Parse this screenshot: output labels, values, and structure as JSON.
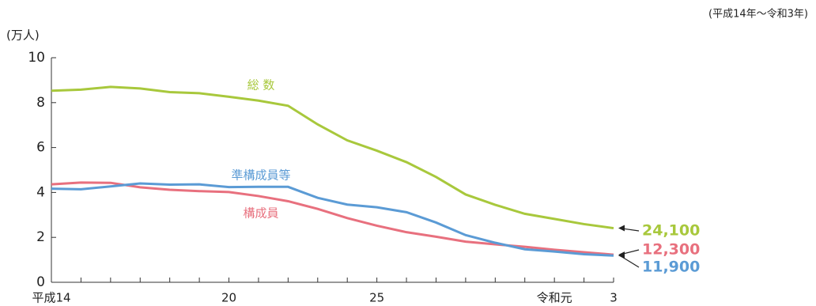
{
  "chart_data": {
    "type": "line",
    "subtitle": "(平成14年～令和3年)",
    "y_label": "(万人)",
    "categories": [
      "平成14",
      null,
      null,
      null,
      null,
      null,
      "20",
      null,
      null,
      null,
      null,
      "25",
      null,
      null,
      null,
      null,
      null,
      "令和元",
      null,
      "3"
    ],
    "series": [
      {
        "name": "総 数",
        "color": "#a8c83c",
        "values": [
          8.53,
          8.58,
          8.7,
          8.63,
          8.47,
          8.42,
          8.26,
          8.09,
          7.86,
          7.03,
          6.32,
          5.86,
          5.35,
          4.69,
          3.91,
          3.45,
          3.05,
          2.82,
          2.59,
          2.41
        ],
        "value_labels": [
          null,
          null,
          null,
          null,
          null,
          null,
          null,
          null,
          null,
          null,
          null,
          null,
          null,
          null,
          null,
          null,
          null,
          null,
          null,
          "24,100"
        ]
      },
      {
        "name": "構成員",
        "color": "#e8707e",
        "values": [
          4.36,
          4.44,
          4.43,
          4.23,
          4.12,
          4.06,
          4.02,
          3.84,
          3.61,
          3.27,
          2.86,
          2.52,
          2.23,
          2.03,
          1.81,
          1.69,
          1.58,
          1.45,
          1.34,
          1.23
        ],
        "value_labels": [
          null,
          null,
          null,
          null,
          null,
          null,
          null,
          null,
          null,
          null,
          null,
          null,
          null,
          null,
          null,
          null,
          null,
          null,
          null,
          "12,300"
        ]
      },
      {
        "name": "準構成員等",
        "color": "#5b9bd5",
        "values": [
          4.17,
          4.14,
          4.27,
          4.4,
          4.35,
          4.36,
          4.24,
          4.25,
          4.25,
          3.76,
          3.46,
          3.34,
          3.12,
          2.66,
          2.1,
          1.76,
          1.47,
          1.37,
          1.25,
          1.19
        ],
        "value_labels": [
          null,
          null,
          null,
          null,
          null,
          null,
          null,
          null,
          null,
          null,
          null,
          null,
          null,
          null,
          null,
          null,
          null,
          null,
          null,
          "11,900"
        ]
      }
    ],
    "ylim": [
      0,
      10
    ],
    "yticks": [
      0,
      2,
      4,
      6,
      8,
      10
    ]
  }
}
